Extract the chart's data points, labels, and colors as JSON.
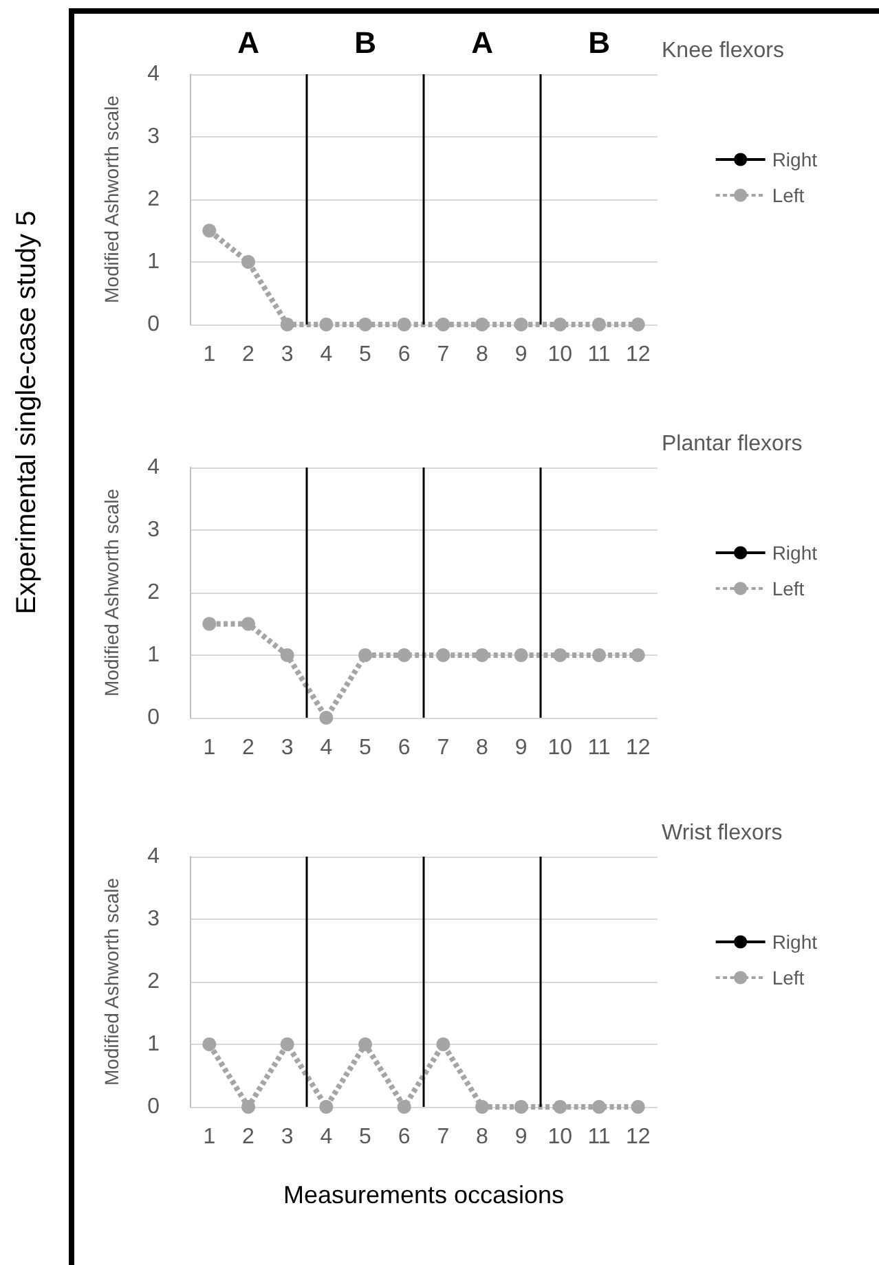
{
  "chart_data": [
    {
      "type": "line",
      "title": "Knee flexors",
      "annotations": [
        "Experimental single-case study 5",
        "A",
        "B",
        "A",
        "B"
      ],
      "ylabel": "Modified Ashworth scale",
      "x": [
        1,
        2,
        3,
        4,
        5,
        6,
        7,
        8,
        9,
        10,
        11,
        12
      ],
      "xlim": [
        0.5,
        12.5
      ],
      "xticks": [
        1,
        2,
        3,
        4,
        5,
        6,
        7,
        8,
        9,
        10,
        11,
        12
      ],
      "ylim": [
        0,
        4
      ],
      "yticks": [
        0,
        1,
        2,
        3,
        4
      ],
      "grid": "y",
      "legend": "right",
      "marker": "circle",
      "series": [
        {
          "name": "Right",
          "color": "#000000",
          "line_style": "solid",
          "values": [
            null,
            null,
            null,
            null,
            null,
            null,
            null,
            null,
            null,
            null,
            null,
            null
          ]
        },
        {
          "name": "Left",
          "color": "#a5a5a5",
          "line_style": "dashed",
          "values": [
            1.5,
            1,
            0,
            0,
            0,
            0,
            0,
            0,
            0,
            0,
            0,
            0
          ]
        }
      ],
      "ref_lines": [
        {
          "axis": "x",
          "value": 3.5,
          "color": "#000000"
        },
        {
          "axis": "x",
          "value": 6.5,
          "color": "#000000"
        },
        {
          "axis": "x",
          "value": 9.5,
          "color": "#000000"
        }
      ]
    },
    {
      "type": "line",
      "title": "Plantar flexors",
      "ylabel": "Modified Ashworth scale",
      "x": [
        1,
        2,
        3,
        4,
        5,
        6,
        7,
        8,
        9,
        10,
        11,
        12
      ],
      "xlim": [
        0.5,
        12.5
      ],
      "xticks": [
        1,
        2,
        3,
        4,
        5,
        6,
        7,
        8,
        9,
        10,
        11,
        12
      ],
      "ylim": [
        0,
        4
      ],
      "yticks": [
        0,
        1,
        2,
        3,
        4
      ],
      "grid": "y",
      "legend": "right",
      "marker": "circle",
      "series": [
        {
          "name": "Right",
          "color": "#000000",
          "line_style": "solid",
          "values": [
            null,
            null,
            null,
            null,
            null,
            null,
            null,
            null,
            null,
            null,
            null,
            null
          ]
        },
        {
          "name": "Left",
          "color": "#a5a5a5",
          "line_style": "dashed",
          "values": [
            1.5,
            1.5,
            1,
            0,
            1,
            1,
            1,
            1,
            1,
            1,
            1,
            1
          ]
        }
      ],
      "ref_lines": [
        {
          "axis": "x",
          "value": 3.5,
          "color": "#000000"
        },
        {
          "axis": "x",
          "value": 6.5,
          "color": "#000000"
        },
        {
          "axis": "x",
          "value": 9.5,
          "color": "#000000"
        }
      ]
    },
    {
      "type": "line",
      "title": "Wrist flexors",
      "ylabel": "Modified Ashworth scale",
      "xlabel": "Measurements occasions",
      "x": [
        1,
        2,
        3,
        4,
        5,
        6,
        7,
        8,
        9,
        10,
        11,
        12
      ],
      "xlim": [
        0.5,
        12.5
      ],
      "xticks": [
        1,
        2,
        3,
        4,
        5,
        6,
        7,
        8,
        9,
        10,
        11,
        12
      ],
      "ylim": [
        0,
        4
      ],
      "yticks": [
        0,
        1,
        2,
        3,
        4
      ],
      "grid": "y",
      "legend": "right",
      "marker": "circle",
      "series": [
        {
          "name": "Right",
          "color": "#000000",
          "line_style": "solid",
          "values": [
            null,
            null,
            null,
            null,
            null,
            null,
            null,
            null,
            null,
            null,
            null,
            null
          ]
        },
        {
          "name": "Left",
          "color": "#a5a5a5",
          "line_style": "dashed",
          "values": [
            1,
            0,
            1,
            0,
            1,
            0,
            1,
            0,
            0,
            0,
            0,
            0
          ]
        }
      ],
      "ref_lines": [
        {
          "axis": "x",
          "value": 3.5,
          "color": "#000000"
        },
        {
          "axis": "x",
          "value": 6.5,
          "color": "#000000"
        },
        {
          "axis": "x",
          "value": 9.5,
          "color": "#000000"
        }
      ]
    }
  ]
}
